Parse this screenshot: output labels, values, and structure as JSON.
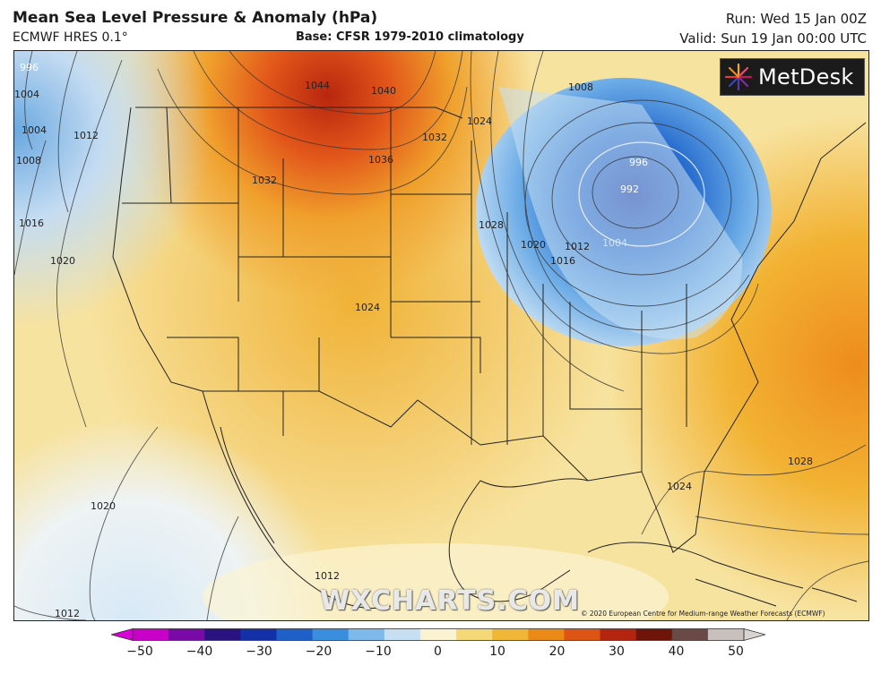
{
  "header": {
    "title": "Mean Sea Level Pressure & Anomaly (hPa)",
    "model": "ECMWF HRES 0.1°",
    "base": "Base: CFSR 1979-2010 climatology",
    "run": "Run: Wed 15 Jan 00Z",
    "valid": "Valid: Sun 19 Jan 00:00 UTC"
  },
  "logo": {
    "text": "MetDesk",
    "icon": "metdesk-starburst-icon"
  },
  "watermark": "WXCHARTS.COM",
  "copyright": "© 2020 European Centre for Medium-range Weather Forecasts (ECMWF)",
  "isobar_labels": [
    "996",
    "1004",
    "1004",
    "1008",
    "1012",
    "1016",
    "1020",
    "1044",
    "1040",
    "1036",
    "1032",
    "1032",
    "1024",
    "1028",
    "1020",
    "1016",
    "1012",
    "1008",
    "1004",
    "996",
    "992",
    "1024",
    "1020",
    "1012",
    "1012",
    "1028",
    "1024"
  ],
  "colorbar": {
    "colors": [
      "#c800c8",
      "#7a0aa8",
      "#2a1280",
      "#1430a8",
      "#1f5fc8",
      "#3b8ede",
      "#7db9ea",
      "#c7dff3",
      "#fbf2d2",
      "#f5d878",
      "#f0b636",
      "#ec8a18",
      "#de5414",
      "#b5240e",
      "#6e1408",
      "#6a4a44",
      "#c8c0bc"
    ],
    "ticks": [
      "−50",
      "−40",
      "−30",
      "−20",
      "−10",
      "0",
      "10",
      "20",
      "30",
      "40",
      "50"
    ]
  }
}
